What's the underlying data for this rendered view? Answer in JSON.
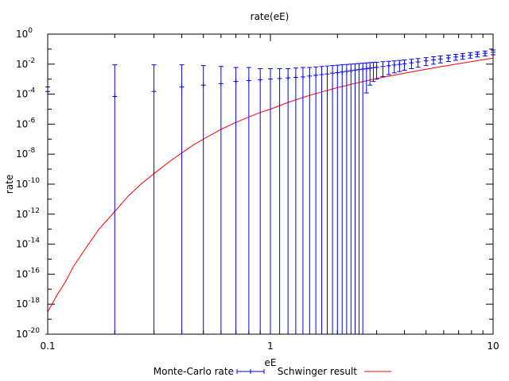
{
  "chart_data": {
    "type": "scatter",
    "title": "rate(eE)",
    "xlabel": "eE",
    "ylabel": "rate",
    "x_scale": "log",
    "y_scale": "log",
    "xlim": [
      0.1,
      10
    ],
    "ylim": [
      1e-20,
      1
    ],
    "x_ticks": [
      {
        "value": 0.1,
        "label": "0.1"
      },
      {
        "value": 1,
        "label": "1"
      },
      {
        "value": 10,
        "label": "10"
      }
    ],
    "y_ticks": [
      {
        "value": 1,
        "label": "10",
        "exp": "0"
      },
      {
        "value": 0.01,
        "label": "10",
        "exp": "-2"
      },
      {
        "value": 0.0001,
        "label": "10",
        "exp": "-4"
      },
      {
        "value": 1e-06,
        "label": "10",
        "exp": "-6"
      },
      {
        "value": 1e-08,
        "label": "10",
        "exp": "-8"
      },
      {
        "value": 1e-10,
        "label": "10",
        "exp": "-10"
      },
      {
        "value": 1e-12,
        "label": "10",
        "exp": "-12"
      },
      {
        "value": 1e-14,
        "label": "10",
        "exp": "-14"
      },
      {
        "value": 1e-16,
        "label": "10",
        "exp": "-16"
      },
      {
        "value": 1e-18,
        "label": "10",
        "exp": "-18"
      },
      {
        "value": 1e-20,
        "label": "10",
        "exp": "-20"
      }
    ],
    "legend_position": "bottom",
    "series": [
      {
        "name": "Monte-Carlo rate",
        "style": "points-with-errorbars",
        "color": "#0000ff",
        "points": [
          {
            "x": 0.1,
            "y": 0.00015,
            "ylow": 1e-20,
            "yhigh": 0.0003
          },
          {
            "x": 0.2,
            "y": 7e-05,
            "ylow": 1e-20,
            "yhigh": 0.009
          },
          {
            "x": 0.3,
            "y": 0.00015,
            "ylow": 1e-20,
            "yhigh": 0.009
          },
          {
            "x": 0.4,
            "y": 0.0003,
            "ylow": 1e-20,
            "yhigh": 0.009
          },
          {
            "x": 0.5,
            "y": 0.0004,
            "ylow": 1e-20,
            "yhigh": 0.008
          },
          {
            "x": 0.6,
            "y": 0.0005,
            "ylow": 1e-20,
            "yhigh": 0.007
          },
          {
            "x": 0.7,
            "y": 0.0007,
            "ylow": 1e-20,
            "yhigh": 0.006
          },
          {
            "x": 0.8,
            "y": 0.0008,
            "ylow": 1e-20,
            "yhigh": 0.006
          },
          {
            "x": 0.9,
            "y": 0.0009,
            "ylow": 1e-20,
            "yhigh": 0.005
          },
          {
            "x": 1.0,
            "y": 0.001,
            "ylow": 1e-20,
            "yhigh": 0.005
          },
          {
            "x": 1.1,
            "y": 0.0011,
            "ylow": 1e-20,
            "yhigh": 0.005
          },
          {
            "x": 1.2,
            "y": 0.0012,
            "ylow": 1e-20,
            "yhigh": 0.005
          },
          {
            "x": 1.3,
            "y": 0.0013,
            "ylow": 1e-20,
            "yhigh": 0.0055
          },
          {
            "x": 1.4,
            "y": 0.0014,
            "ylow": 1e-20,
            "yhigh": 0.006
          },
          {
            "x": 1.5,
            "y": 0.0016,
            "ylow": 1e-20,
            "yhigh": 0.006
          },
          {
            "x": 1.6,
            "y": 0.0018,
            "ylow": 1e-20,
            "yhigh": 0.0065
          },
          {
            "x": 1.7,
            "y": 0.002,
            "ylow": 1e-20,
            "yhigh": 0.007
          },
          {
            "x": 1.8,
            "y": 0.0022,
            "ylow": 1e-20,
            "yhigh": 0.0075
          },
          {
            "x": 1.9,
            "y": 0.0025,
            "ylow": 1e-20,
            "yhigh": 0.008
          },
          {
            "x": 2.0,
            "y": 0.0027,
            "ylow": 1e-20,
            "yhigh": 0.0085
          },
          {
            "x": 2.1,
            "y": 0.003,
            "ylow": 1e-20,
            "yhigh": 0.009
          },
          {
            "x": 2.2,
            "y": 0.0033,
            "ylow": 1e-20,
            "yhigh": 0.0095
          },
          {
            "x": 2.3,
            "y": 0.0036,
            "ylow": 1e-20,
            "yhigh": 0.01
          },
          {
            "x": 2.4,
            "y": 0.004,
            "ylow": 1e-20,
            "yhigh": 0.0105
          },
          {
            "x": 2.5,
            "y": 0.0043,
            "ylow": 1e-20,
            "yhigh": 0.011
          },
          {
            "x": 2.6,
            "y": 0.0047,
            "ylow": 1e-20,
            "yhigh": 0.0115
          },
          {
            "x": 2.7,
            "y": 0.005,
            "ylow": 0.00012,
            "yhigh": 0.012
          },
          {
            "x": 2.8,
            "y": 0.0054,
            "ylow": 0.0004,
            "yhigh": 0.0125
          },
          {
            "x": 2.9,
            "y": 0.0058,
            "ylow": 0.0007,
            "yhigh": 0.013
          },
          {
            "x": 3.0,
            "y": 0.0062,
            "ylow": 0.001,
            "yhigh": 0.0135
          },
          {
            "x": 3.2,
            "y": 0.007,
            "ylow": 0.0015,
            "yhigh": 0.0145
          },
          {
            "x": 3.4,
            "y": 0.0078,
            "ylow": 0.002,
            "yhigh": 0.0155
          },
          {
            "x": 3.6,
            "y": 0.0087,
            "ylow": 0.0026,
            "yhigh": 0.0165
          },
          {
            "x": 3.8,
            "y": 0.0096,
            "ylow": 0.0032,
            "yhigh": 0.0175
          },
          {
            "x": 4.0,
            "y": 0.0105,
            "ylow": 0.0039,
            "yhigh": 0.019
          },
          {
            "x": 4.3,
            "y": 0.0122,
            "ylow": 0.005,
            "yhigh": 0.021
          },
          {
            "x": 4.6,
            "y": 0.014,
            "ylow": 0.0062,
            "yhigh": 0.0235
          },
          {
            "x": 5.0,
            "y": 0.0165,
            "ylow": 0.008,
            "yhigh": 0.027
          },
          {
            "x": 5.4,
            "y": 0.0192,
            "ylow": 0.0099,
            "yhigh": 0.031
          },
          {
            "x": 5.8,
            "y": 0.022,
            "ylow": 0.012,
            "yhigh": 0.035
          },
          {
            "x": 6.3,
            "y": 0.026,
            "ylow": 0.015,
            "yhigh": 0.04
          },
          {
            "x": 6.8,
            "y": 0.03,
            "ylow": 0.018,
            "yhigh": 0.045
          },
          {
            "x": 7.3,
            "y": 0.034,
            "ylow": 0.021,
            "yhigh": 0.051
          },
          {
            "x": 7.9,
            "y": 0.04,
            "ylow": 0.025,
            "yhigh": 0.058
          },
          {
            "x": 8.5,
            "y": 0.046,
            "ylow": 0.03,
            "yhigh": 0.066
          },
          {
            "x": 9.2,
            "y": 0.053,
            "ylow": 0.035,
            "yhigh": 0.075
          },
          {
            "x": 10.0,
            "y": 0.062,
            "ylow": 0.042,
            "yhigh": 0.086
          }
        ]
      },
      {
        "name": "Schwinger result",
        "style": "line",
        "color": "#ff0000",
        "x": [
          0.1,
          0.11,
          0.12,
          0.13,
          0.15,
          0.17,
          0.2,
          0.23,
          0.26,
          0.3,
          0.35,
          0.4,
          0.45,
          0.5,
          0.6,
          0.7,
          0.8,
          0.9,
          1.0,
          1.2,
          1.4,
          1.6,
          1.8,
          2.0,
          2.5,
          3.0,
          3.5,
          4.0,
          5.0,
          6.0,
          7.0,
          8.0,
          9.0,
          10.0
        ],
        "y": [
          3e-19,
          4e-18,
          3e-17,
          3e-16,
          7e-15,
          1e-13,
          1.5e-12,
          1.6e-11,
          9e-11,
          5e-10,
          3e-09,
          1.2e-08,
          4e-08,
          1e-07,
          4.5e-07,
          1.3e-06,
          3e-06,
          6e-06,
          1e-05,
          2.8e-05,
          6e-05,
          0.00011,
          0.00018,
          0.00027,
          0.0006,
          0.0011,
          0.0017,
          0.0025,
          0.0046,
          0.0073,
          0.0107,
          0.0148,
          0.0195,
          0.025
        ]
      }
    ]
  }
}
